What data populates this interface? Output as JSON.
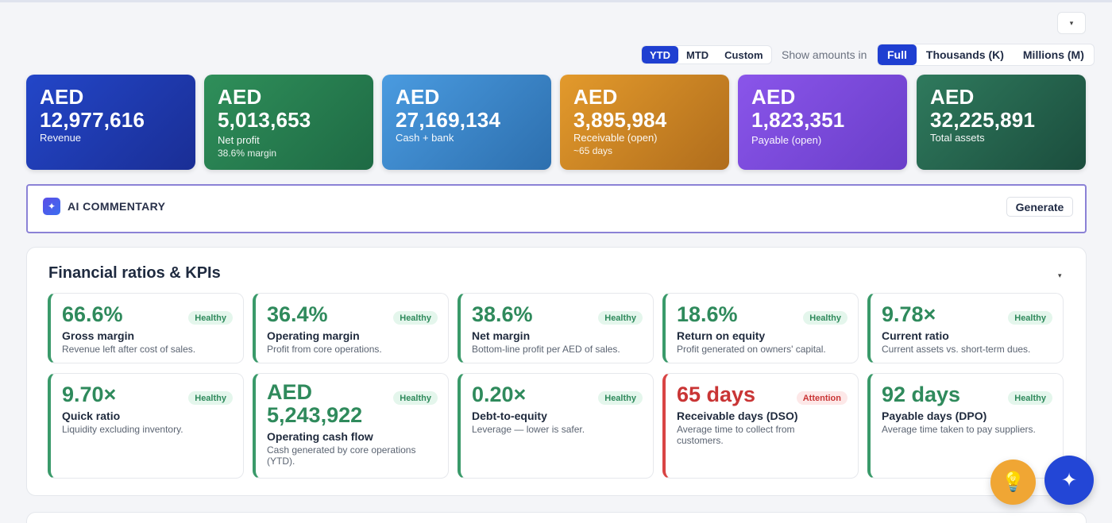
{
  "header": {
    "dropdown_caret": "▾",
    "period_options": [
      "YTD",
      "MTD",
      "Custom"
    ],
    "period_active": "YTD",
    "show_amounts_label": "Show amounts in",
    "amount_options": [
      "Full",
      "Thousands (K)",
      "Millions (M)"
    ],
    "amount_active": "Full"
  },
  "summary_cards": [
    {
      "value": "AED 12,977,616",
      "label": "Revenue",
      "sub": ""
    },
    {
      "value": "AED 5,013,653",
      "label": "Net profit",
      "sub": "38.6% margin"
    },
    {
      "value": "AED 27,169,134",
      "label": "Cash + bank",
      "sub": ""
    },
    {
      "value": "AED 3,895,984",
      "label": "Receivable (open)",
      "sub": "~65 days"
    },
    {
      "value": "AED 1,823,351",
      "label": "Payable (open)",
      "sub": ""
    },
    {
      "value": "AED 32,225,891",
      "label": "Total assets",
      "sub": ""
    }
  ],
  "ai_commentary": {
    "icon": "sparkle-icon",
    "title": "AI COMMENTARY",
    "generate_label": "Generate"
  },
  "kpi_panel": {
    "title": "Financial ratios & KPIs",
    "collapse_caret": "▾",
    "items": [
      {
        "value": "66.6%",
        "badge": "Healthy",
        "name": "Gross margin",
        "desc": "Revenue left after cost of sales."
      },
      {
        "value": "36.4%",
        "badge": "Healthy",
        "name": "Operating margin",
        "desc": "Profit from core operations."
      },
      {
        "value": "38.6%",
        "badge": "Healthy",
        "name": "Net margin",
        "desc": "Bottom-line profit per AED of sales."
      },
      {
        "value": "18.6%",
        "badge": "Healthy",
        "name": "Return on equity",
        "desc": "Profit generated on owners' capital."
      },
      {
        "value": "9.78×",
        "badge": "Healthy",
        "name": "Current ratio",
        "desc": "Current assets vs. short-term dues."
      },
      {
        "value": "9.70×",
        "badge": "Healthy",
        "name": "Quick ratio",
        "desc": "Liquidity excluding inventory."
      },
      {
        "value": "AED 5,243,922",
        "badge": "Healthy",
        "name": "Operating cash flow",
        "desc": "Cash generated by core operations (YTD)."
      },
      {
        "value": "0.20×",
        "badge": "Healthy",
        "name": "Debt-to-equity",
        "desc": "Leverage — lower is safer."
      },
      {
        "value": "65 days",
        "badge": "Attention",
        "name": "Receivable days (DSO)",
        "desc": "Average time to collect from customers."
      },
      {
        "value": "92 days",
        "badge": "Healthy",
        "name": "Payable days (DPO)",
        "desc": "Average time taken to pay suppliers."
      }
    ]
  },
  "fabs": {
    "bulb_icon": "lightbulb-icon",
    "ai_icon": "sparkle-icon"
  },
  "colors": {
    "accent": "#1f3fd1",
    "healthy": "#2f8a5c",
    "attention": "#c93535"
  }
}
